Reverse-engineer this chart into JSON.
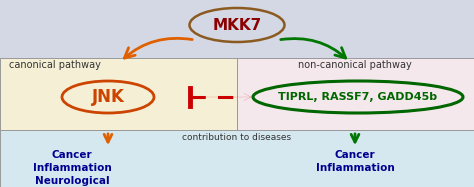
{
  "bg_top": "#d4d8e4",
  "bg_left": "#f5f0d5",
  "bg_right": "#f5e8ec",
  "bg_bottom": "#d5e8f0",
  "mkk7_text": "MKK7",
  "mkk7_color": "#8b0000",
  "mkk7_oval_color": "#8b5a20",
  "jnk_text": "JNK",
  "jnk_color": "#cc4400",
  "jnk_oval_color": "#cc4400",
  "tiprl_text": "TIPRL, RASSF7, GADD45b",
  "tiprl_color": "#006600",
  "tiprl_oval_color": "#006600",
  "canonical_text": "canonical pathway",
  "noncanonical_text": "non-canonical pathway",
  "contribution_text": "contribution to diseases",
  "left_diseases": "Cancer\nInflammation\nNeurological",
  "right_diseases": "Cancer\nInflammation",
  "disease_color": "#000090",
  "arrow_orange": "#e06000",
  "arrow_green": "#007700",
  "inhibit_color": "#cc0000",
  "label_color": "#333333",
  "fig_w": 4.74,
  "fig_h": 1.87,
  "dpi": 100
}
